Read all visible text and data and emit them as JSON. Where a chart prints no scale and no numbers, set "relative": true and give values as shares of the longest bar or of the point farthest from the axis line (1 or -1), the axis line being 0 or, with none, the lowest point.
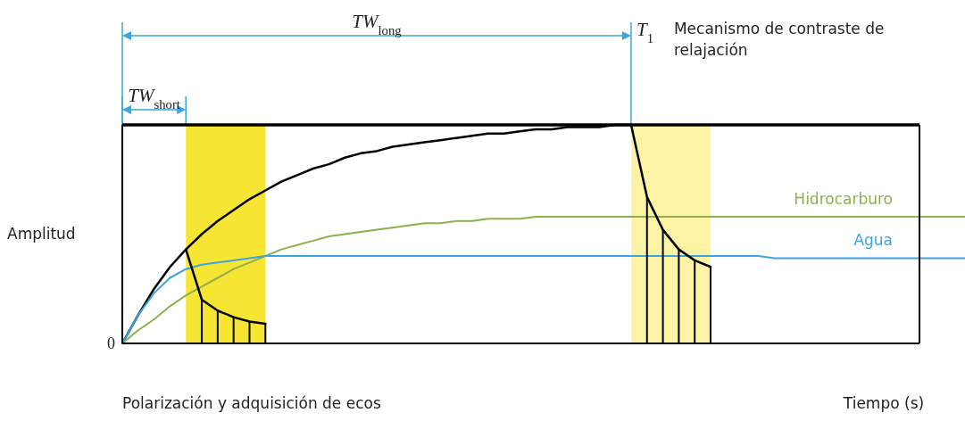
{
  "chart_data": {
    "type": "line",
    "relative": true,
    "xlabel": "Tiempo (s)",
    "ylabel": "Amplitud",
    "categories": [
      null,
      null,
      null,
      null,
      null,
      null,
      null,
      null,
      null,
      null,
      null,
      null,
      null,
      null,
      null,
      null,
      null,
      null,
      null,
      null,
      null,
      null,
      null,
      null,
      null,
      null,
      null,
      null,
      null,
      null,
      null,
      null,
      null,
      null,
      null,
      null,
      null,
      null,
      null,
      null,
      null,
      null,
      null,
      null,
      null,
      null,
      null,
      null,
      null,
      null,
      null,
      null,
      null,
      null
    ],
    "series": [
      {
        "color": "#000000",
        "values": [
          0,
          0.13,
          0.25,
          0.35,
          0.43,
          0.5,
          0.56,
          0.61,
          0.66,
          0.7,
          0.74,
          0.77,
          0.8,
          0.82,
          0.85,
          0.87,
          0.88,
          0.9,
          0.91,
          0.92,
          0.93,
          0.94,
          0.95,
          0.96,
          0.96,
          0.97,
          0.98,
          0.98,
          0.99,
          0.99,
          0.99,
          1.0,
          1.0,
          null,
          null,
          null,
          null,
          null,
          null,
          null,
          null,
          null,
          null,
          null,
          null,
          null,
          null,
          null,
          null,
          null,
          null,
          null,
          null,
          null
        ]
      },
      {
        "name": "Hidrocarburo",
        "color": "#8db04e",
        "values": [
          0,
          0.06,
          0.11,
          0.17,
          0.22,
          0.26,
          0.3,
          0.34,
          0.37,
          0.4,
          0.43,
          0.45,
          0.47,
          0.49,
          0.5,
          0.51,
          0.52,
          0.53,
          0.54,
          0.55,
          0.55,
          0.56,
          0.56,
          0.57,
          0.57,
          0.57,
          0.58,
          0.58,
          0.58,
          0.58,
          0.58,
          0.58,
          0.58,
          0.58,
          0.58,
          0.58,
          0.58,
          0.58,
          0.58,
          0.58,
          0.58,
          0.58,
          0.58,
          0.58,
          0.58,
          0.58,
          0.58,
          0.58,
          0.58,
          0.58,
          0.58,
          0.58,
          0.58,
          0.58
        ]
      },
      {
        "name": "Agua",
        "color": "#3aa6dd",
        "values": [
          0,
          0.13,
          0.23,
          0.3,
          0.34,
          0.36,
          0.37,
          0.38,
          0.39,
          0.4,
          0.4,
          0.4,
          0.4,
          0.4,
          0.4,
          0.4,
          0.4,
          0.4,
          0.4,
          0.4,
          0.4,
          0.4,
          0.4,
          0.4,
          0.4,
          0.4,
          0.4,
          0.4,
          0.4,
          0.4,
          0.4,
          0.4,
          0.4,
          0.4,
          0.4,
          0.4,
          0.4,
          0.4,
          0.4,
          0.4,
          0.4,
          0.39,
          0.39,
          0.39,
          0.39,
          0.39,
          0.39,
          0.39,
          0.39,
          0.39,
          0.39,
          0.39,
          0.39,
          0.39
        ]
      },
      {
        "color": "#000000",
        "values": [
          null,
          null,
          null,
          null,
          0.43,
          0.2,
          0.15,
          0.12,
          0.1,
          0.09,
          null,
          null,
          null,
          null,
          null,
          null,
          null,
          null,
          null,
          null,
          null,
          null,
          null,
          null,
          null,
          null,
          null,
          null,
          null,
          null,
          null,
          null,
          null,
          null,
          null,
          null,
          null,
          null,
          null,
          null,
          null,
          null,
          null,
          null,
          null,
          null,
          null,
          null,
          null,
          null,
          null,
          null,
          null,
          null
        ]
      },
      {
        "color": "#000000",
        "values": [
          null,
          null,
          null,
          null,
          null,
          null,
          null,
          null,
          null,
          null,
          null,
          null,
          null,
          null,
          null,
          null,
          null,
          null,
          null,
          null,
          null,
          null,
          null,
          null,
          null,
          null,
          null,
          null,
          null,
          null,
          null,
          null,
          1.0,
          0.67,
          0.52,
          0.43,
          0.38,
          0.35,
          null,
          null,
          null,
          null,
          null,
          null,
          null,
          null,
          null,
          null,
          null,
          null,
          null,
          null,
          null,
          null
        ]
      }
    ],
    "annotations": [
      "TW$_{short}$",
      "TW$_{long}$",
      "T$_{1}$",
      "Mecanismo de contraste de relajación",
      "Polarización y adquisición de ecos",
      "0"
    ]
  }
}
